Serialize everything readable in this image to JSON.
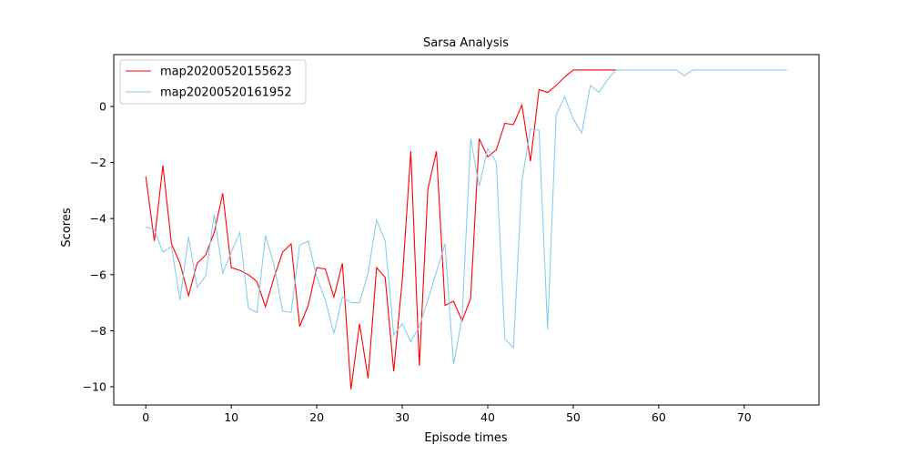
{
  "chart_data": {
    "type": "line",
    "title": "Sarsa Analysis",
    "xlabel": "Episode times",
    "ylabel": "Scores",
    "xlim": [
      -3.75,
      78.75
    ],
    "ylim": [
      -10.65,
      1.85
    ],
    "xticks": [
      0,
      10,
      20,
      30,
      40,
      50,
      60,
      70
    ],
    "yticks": [
      -10,
      -8,
      -6,
      -4,
      -2,
      0
    ],
    "grid": false,
    "legend_position": "top-left",
    "series": [
      {
        "name": "map20200520155623",
        "color": "#ff0000",
        "x": [
          0,
          1,
          2,
          3,
          4,
          5,
          6,
          7,
          8,
          9,
          10,
          11,
          12,
          13,
          14,
          15,
          16,
          17,
          18,
          19,
          20,
          21,
          22,
          23,
          24,
          25,
          26,
          27,
          28,
          29,
          30,
          31,
          32,
          33,
          34,
          35,
          36,
          37,
          38,
          39,
          40,
          41,
          42,
          43,
          44,
          45,
          46,
          47,
          48,
          49,
          50,
          51,
          52,
          53,
          54,
          55
        ],
        "y": [
          -2.5,
          -4.8,
          -2.1,
          -4.9,
          -5.6,
          -6.75,
          -5.6,
          -5.3,
          -4.5,
          -3.1,
          -5.75,
          -5.85,
          -6.0,
          -6.25,
          -7.15,
          -6.1,
          -5.2,
          -4.9,
          -7.85,
          -7.1,
          -5.75,
          -5.8,
          -6.8,
          -5.6,
          -10.1,
          -7.75,
          -9.7,
          -5.75,
          -6.1,
          -9.45,
          -6.2,
          -1.6,
          -9.25,
          -2.95,
          -1.6,
          -7.1,
          -6.95,
          -7.65,
          -6.85,
          -1.15,
          -1.8,
          -1.55,
          -0.6,
          -0.65,
          0.05,
          -1.95,
          0.6,
          0.5,
          0.75,
          1.05,
          1.3,
          1.3,
          1.3,
          1.3,
          1.3,
          1.3
        ]
      },
      {
        "name": "map20200520161952",
        "color": "#87ceeb",
        "x": [
          0,
          1,
          2,
          3,
          4,
          5,
          6,
          7,
          8,
          9,
          10,
          11,
          12,
          13,
          14,
          15,
          16,
          17,
          18,
          19,
          20,
          21,
          22,
          23,
          24,
          25,
          26,
          27,
          28,
          29,
          30,
          31,
          32,
          33,
          34,
          35,
          36,
          37,
          38,
          39,
          40,
          41,
          42,
          43,
          44,
          45,
          46,
          47,
          48,
          49,
          50,
          51,
          52,
          53,
          54,
          55,
          56,
          57,
          58,
          59,
          60,
          61,
          62,
          63,
          64,
          65,
          66,
          67,
          68,
          69,
          70,
          71,
          72,
          73,
          74,
          75
        ],
        "y": [
          -4.3,
          -4.4,
          -5.2,
          -5.0,
          -6.9,
          -4.65,
          -6.45,
          -6.05,
          -3.85,
          -5.95,
          -5.2,
          -4.5,
          -7.2,
          -7.35,
          -4.6,
          -5.65,
          -7.3,
          -7.35,
          -4.95,
          -4.8,
          -6.1,
          -6.9,
          -8.1,
          -6.8,
          -7.0,
          -7.0,
          -5.95,
          -4.05,
          -4.8,
          -8.15,
          -7.75,
          -8.4,
          -7.85,
          -6.9,
          -5.9,
          -4.9,
          -9.2,
          -7.55,
          -1.15,
          -2.85,
          -1.5,
          -2.0,
          -8.3,
          -8.6,
          -2.65,
          -0.8,
          -0.85,
          -7.95,
          -0.3,
          0.35,
          -0.45,
          -0.95,
          0.75,
          0.5,
          0.95,
          1.3,
          1.3,
          1.3,
          1.3,
          1.3,
          1.3,
          1.3,
          1.3,
          1.1,
          1.3,
          1.3,
          1.3,
          1.3,
          1.3,
          1.3,
          1.3,
          1.3,
          1.3,
          1.3,
          1.3,
          1.3
        ]
      }
    ]
  }
}
